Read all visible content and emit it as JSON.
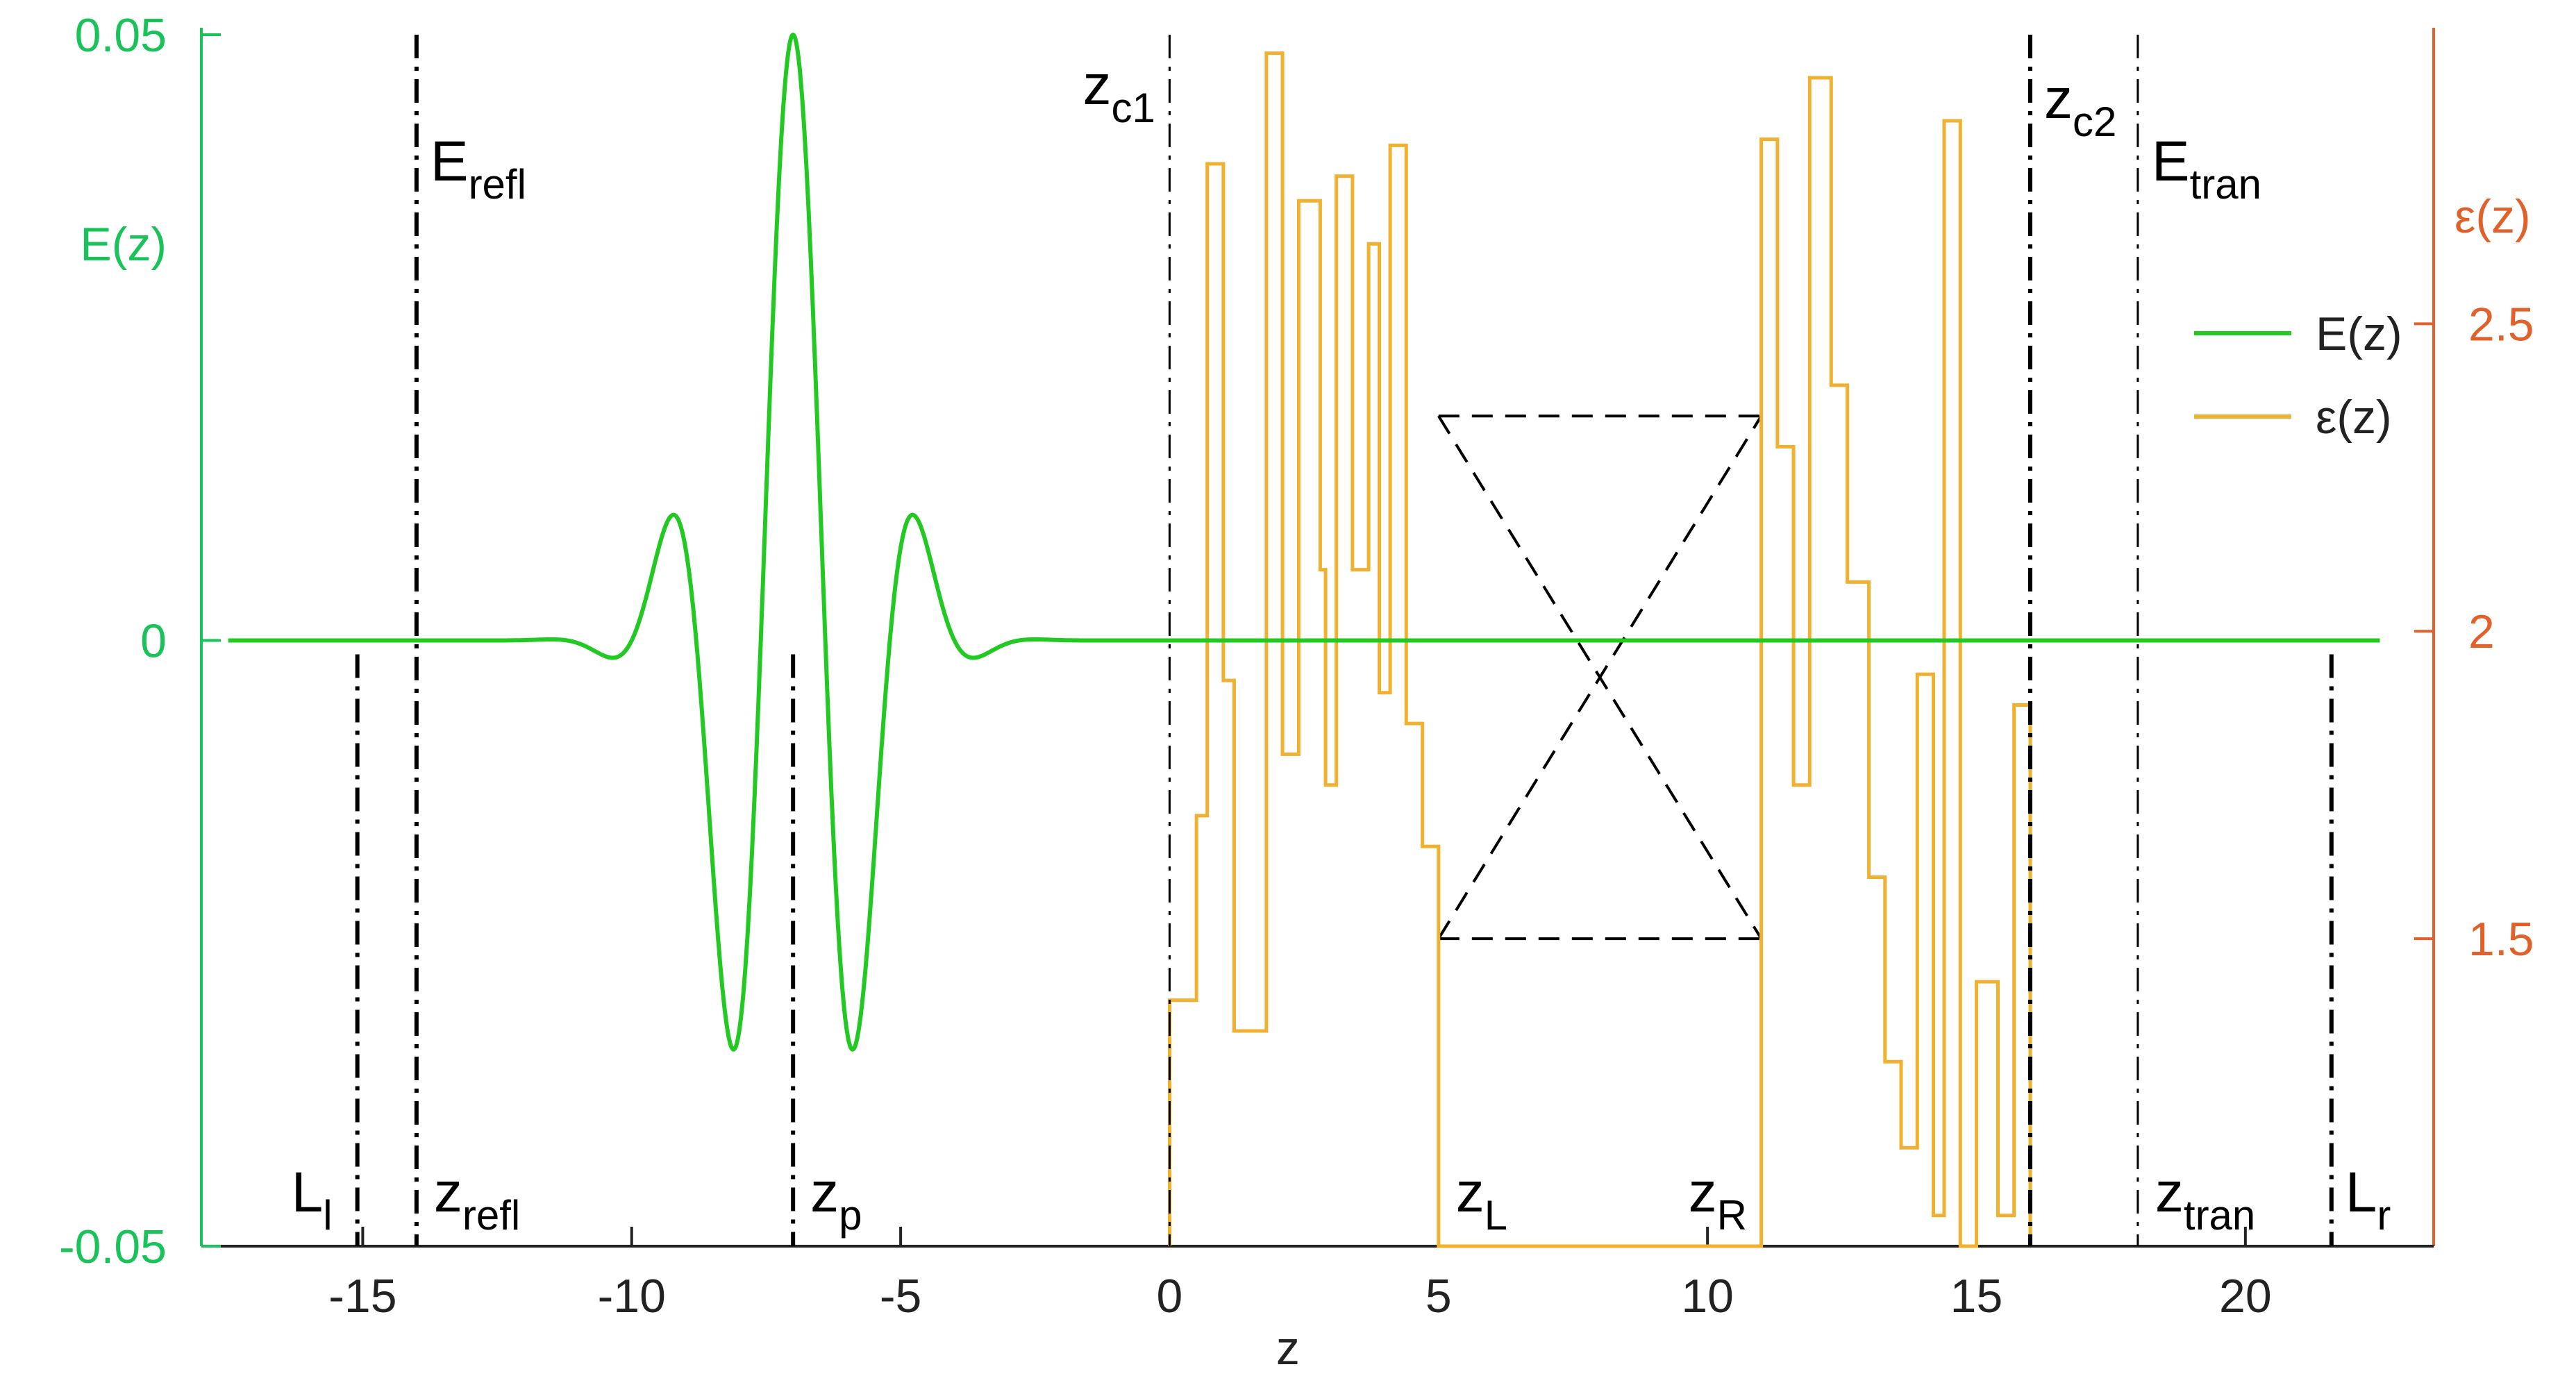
{
  "chart_data": {
    "type": "line",
    "xlabel": "z",
    "ylabel_left": "E(z)",
    "ylabel_right": "ε(z)",
    "xlim": [
      -18,
      23.5
    ],
    "ylim_left": [
      -0.05,
      0.05
    ],
    "ylim_right": [
      1.0,
      2.97
    ],
    "xticks": [
      -15,
      -10,
      -5,
      0,
      5,
      10,
      15,
      20
    ],
    "yticks_left": [
      -0.05,
      0,
      0.05
    ],
    "yticks_left_labels": [
      "-0.05",
      "0",
      "0.05"
    ],
    "yticks_right": [
      1.5,
      2,
      2.5
    ],
    "yticks_right_labels": [
      "1.5",
      "2",
      "2.5"
    ],
    "legend": {
      "position": "right",
      "entries": [
        {
          "label": "E(z)",
          "color": "#23c923"
        },
        {
          "label": "ε(z)",
          "color": "#f0b030"
        }
      ]
    },
    "colors": {
      "E": "#23c923",
      "eps": "#f0b030",
      "left_axis": "#19c35a",
      "right_axis": "#e0622a",
      "markers": "#000000"
    },
    "series": [
      {
        "name": "E(z)",
        "kind": "wave_packet",
        "x_range": [
          -17.5,
          22.5
        ],
        "center": -7.0,
        "amplitude": 0.05,
        "carrier_wavelength": 2.4,
        "envelope_sigma": 1.3
      },
      {
        "name": "ε(z)",
        "kind": "step",
        "points": [
          [
            0.0,
            1.0
          ],
          [
            0.0,
            1.4
          ],
          [
            0.5,
            1.4
          ],
          [
            0.5,
            1.7
          ],
          [
            0.7,
            1.7
          ],
          [
            0.7,
            2.76
          ],
          [
            1.0,
            2.76
          ],
          [
            1.0,
            1.92
          ],
          [
            1.2,
            1.92
          ],
          [
            1.2,
            1.35
          ],
          [
            1.8,
            1.35
          ],
          [
            1.8,
            2.94
          ],
          [
            2.1,
            2.94
          ],
          [
            2.1,
            1.8
          ],
          [
            2.4,
            1.8
          ],
          [
            2.4,
            2.7
          ],
          [
            2.8,
            2.7
          ],
          [
            2.8,
            2.1
          ],
          [
            2.9,
            2.1
          ],
          [
            2.9,
            1.75
          ],
          [
            3.1,
            1.75
          ],
          [
            3.1,
            2.74
          ],
          [
            3.4,
            2.74
          ],
          [
            3.4,
            2.1
          ],
          [
            3.7,
            2.1
          ],
          [
            3.7,
            2.63
          ],
          [
            3.9,
            2.63
          ],
          [
            3.9,
            1.9
          ],
          [
            4.1,
            1.9
          ],
          [
            4.1,
            2.79
          ],
          [
            4.4,
            2.79
          ],
          [
            4.4,
            1.85
          ],
          [
            4.7,
            1.85
          ],
          [
            4.7,
            1.65
          ],
          [
            5.0,
            1.65
          ],
          [
            5.0,
            1.0
          ],
          [
            11.0,
            1.0
          ],
          [
            11.0,
            2.8
          ],
          [
            11.3,
            2.8
          ],
          [
            11.3,
            2.3
          ],
          [
            11.6,
            2.3
          ],
          [
            11.6,
            1.75
          ],
          [
            11.9,
            1.75
          ],
          [
            11.9,
            2.9
          ],
          [
            12.3,
            2.9
          ],
          [
            12.3,
            2.4
          ],
          [
            12.6,
            2.4
          ],
          [
            12.6,
            2.08
          ],
          [
            13.0,
            2.08
          ],
          [
            13.0,
            1.6
          ],
          [
            13.3,
            1.6
          ],
          [
            13.3,
            1.3
          ],
          [
            13.6,
            1.3
          ],
          [
            13.6,
            1.16
          ],
          [
            13.9,
            1.16
          ],
          [
            13.9,
            1.93
          ],
          [
            14.2,
            1.93
          ],
          [
            14.2,
            1.05
          ],
          [
            14.4,
            1.05
          ],
          [
            14.4,
            2.83
          ],
          [
            14.7,
            2.83
          ],
          [
            14.7,
            1.0
          ],
          [
            15.0,
            1.0
          ],
          [
            15.0,
            1.43
          ],
          [
            15.4,
            1.43
          ],
          [
            15.4,
            1.05
          ],
          [
            15.7,
            1.05
          ],
          [
            15.7,
            1.88
          ],
          [
            16.0,
            1.88
          ],
          [
            16.0,
            1.0
          ]
        ]
      }
    ],
    "vertical_markers": [
      {
        "x": -15.1,
        "label": "L",
        "sub": "l",
        "label_pos": "bottom"
      },
      {
        "x": -14.0,
        "label": "z",
        "sub": "refl",
        "label_pos": "bottom"
      },
      {
        "x": -14.0,
        "label": "E",
        "sub": "refl",
        "label_pos": "top"
      },
      {
        "x": -7.0,
        "label": "z",
        "sub": "p",
        "label_pos": "bottom"
      },
      {
        "x": 0.0,
        "label": "z",
        "sub": "c1",
        "label_pos": "top-left"
      },
      {
        "x": 5.0,
        "label": "z",
        "sub": "L",
        "label_pos": "bottom"
      },
      {
        "x": 11.0,
        "label": "z",
        "sub": "R",
        "label_pos": "bottom-left"
      },
      {
        "x": 16.0,
        "label": "z",
        "sub": "c2",
        "label_pos": "top"
      },
      {
        "x": 18.0,
        "label": "E",
        "sub": "tran",
        "label_pos": "top"
      },
      {
        "x": 18.0,
        "label": "z",
        "sub": "tran",
        "label_pos": "bottom"
      },
      {
        "x": 21.6,
        "label": "L",
        "sub": "r",
        "label_pos": "bottom"
      }
    ],
    "dashed_box": {
      "x0": 5.0,
      "x1": 11.0,
      "y_top": 2.35,
      "y_bottom": 1.5
    }
  }
}
